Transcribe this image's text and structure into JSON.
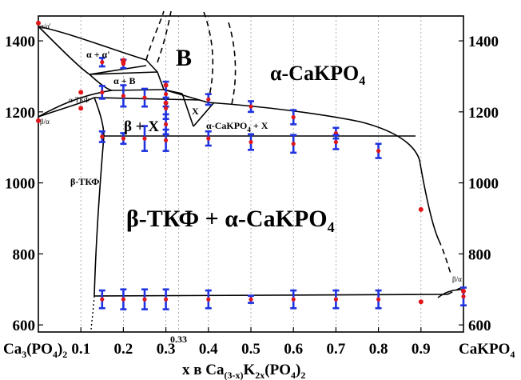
{
  "chart_data": {
    "type": "phase-diagram",
    "xlabel_main": "x в Ca",
    "xlabel_sub1": "(3-x)",
    "xlabel_mid": "K",
    "xlabel_sub2": "2x",
    "xlabel_end": "(PO",
    "xlabel_sub3": "4",
    "xlabel_close": ")",
    "xlabel_sub4": "2",
    "x_end_left": {
      "main": "Ca",
      "sub1": "3",
      "mid": "(PO",
      "sub2": "4",
      "close": ")",
      "sub3": "2"
    },
    "x_end_right": "CaKPO",
    "x_end_right_sub": "4",
    "xlim": [
      0,
      1
    ],
    "ylim": [
      580,
      1470
    ],
    "x_ticks": [
      "0.1",
      "0.2",
      "0.3",
      "0.4",
      "0.5",
      "0.6",
      "0.7",
      "0.8",
      "0.9"
    ],
    "x_tick_values": [
      0.1,
      0.2,
      0.3,
      0.4,
      0.5,
      0.6,
      0.7,
      0.8,
      0.9
    ],
    "special_tick": "0.33",
    "special_tick_value": 0.33,
    "y_ticks": [
      "600",
      "800",
      "1000",
      "1200",
      "1400"
    ],
    "y_tick_values": [
      600,
      800,
      1000,
      1200,
      1400
    ],
    "grid": "vertical-dotted",
    "regions": {
      "alpha_alpha_prime": "α/α'",
      "alpha_plus_alpha_prime": "α + α'",
      "B": "B",
      "alpha_plus_B": "α + B",
      "alpha_tkf": "α-ТКФ",
      "beta_alpha_left": "β/α",
      "X": "X",
      "beta_plus_X": "β + X",
      "alpha_cakpo_X": "α-CaKPO",
      "alpha_cakpo_X_sub": "4",
      "alpha_cakpo_X_tail": " + X",
      "beta_tkf": "β-ТКФ",
      "main_phase": "β-ТКФ + α-CaKPO",
      "main_phase_sub": "4",
      "alpha_cakpo": "α-CaKPO",
      "alpha_cakpo_sub": "4",
      "beta_alpha_right": "β/α"
    },
    "experimental_points": [
      {
        "x": 0.0,
        "y": 1450
      },
      {
        "x": 0.0,
        "y": 1175
      },
      {
        "x": 0.1,
        "y": 1255
      },
      {
        "x": 0.1,
        "y": 1210
      },
      {
        "x": 0.2,
        "y": 1345
      },
      {
        "x": 0.2,
        "y": 1340
      },
      {
        "x": 0.3,
        "y": 1275
      },
      {
        "x": 0.3,
        "y": 1225
      },
      {
        "x": 0.9,
        "y": 925
      },
      {
        "x": 0.9,
        "y": 665
      },
      {
        "x": 1.0,
        "y": 695
      }
    ],
    "error_bar_points": [
      {
        "x": 0.15,
        "y": 1340,
        "err": 12
      },
      {
        "x": 0.2,
        "y": 1335,
        "err": 12
      },
      {
        "x": 0.15,
        "y": 1255,
        "err": 18
      },
      {
        "x": 0.2,
        "y": 1245,
        "err": 30
      },
      {
        "x": 0.25,
        "y": 1240,
        "err": 25
      },
      {
        "x": 0.3,
        "y": 1250,
        "err": 35
      },
      {
        "x": 0.3,
        "y": 1210,
        "err": 30
      },
      {
        "x": 0.3,
        "y": 1165,
        "err": 28
      },
      {
        "x": 0.15,
        "y": 1130,
        "err": 15
      },
      {
        "x": 0.2,
        "y": 1125,
        "err": 15
      },
      {
        "x": 0.25,
        "y": 1125,
        "err": 35
      },
      {
        "x": 0.3,
        "y": 1120,
        "err": 30
      },
      {
        "x": 0.4,
        "y": 1235,
        "err": 15
      },
      {
        "x": 0.4,
        "y": 1125,
        "err": 20
      },
      {
        "x": 0.5,
        "y": 1215,
        "err": 15
      },
      {
        "x": 0.5,
        "y": 1115,
        "err": 22
      },
      {
        "x": 0.6,
        "y": 1185,
        "err": 20
      },
      {
        "x": 0.6,
        "y": 1110,
        "err": 25
      },
      {
        "x": 0.7,
        "y": 1140,
        "err": 15
      },
      {
        "x": 0.7,
        "y": 1115,
        "err": 20
      },
      {
        "x": 0.8,
        "y": 1090,
        "err": 20
      },
      {
        "x": 0.15,
        "y": 672,
        "err": 25
      },
      {
        "x": 0.2,
        "y": 672,
        "err": 28
      },
      {
        "x": 0.25,
        "y": 672,
        "err": 28
      },
      {
        "x": 0.3,
        "y": 672,
        "err": 28
      },
      {
        "x": 0.4,
        "y": 672,
        "err": 25
      },
      {
        "x": 0.5,
        "y": 672,
        "err": 10
      },
      {
        "x": 0.6,
        "y": 672,
        "err": 25
      },
      {
        "x": 0.7,
        "y": 672,
        "err": 25
      },
      {
        "x": 0.8,
        "y": 672,
        "err": 25
      },
      {
        "x": 1.0,
        "y": 680,
        "err": 25
      }
    ],
    "point_color": "#e0161b",
    "errorbar_color": "#1f33e0"
  }
}
